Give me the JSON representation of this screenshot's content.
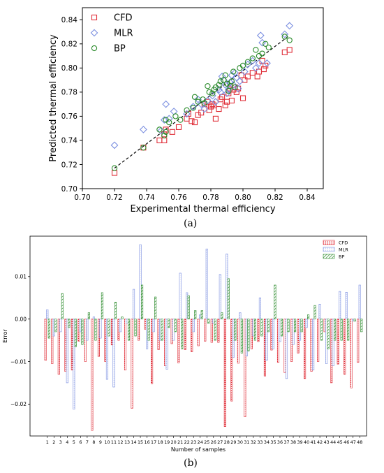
{
  "chart_data": [
    {
      "type": "scatter",
      "subfigure_label": "(a)",
      "xlabel": "Experimental thermal efficiency",
      "ylabel": "Predicted thermal efficiency",
      "xlim": [
        0.7,
        0.85
      ],
      "ylim": [
        0.7,
        0.85
      ],
      "xticks": [
        "0.70",
        "0.72",
        "0.74",
        "0.76",
        "0.78",
        "0.80",
        "0.82",
        "0.84"
      ],
      "yticks": [
        "0.70",
        "0.72",
        "0.74",
        "0.76",
        "0.78",
        "0.80",
        "0.82",
        "0.84"
      ],
      "legend_position": "top-left",
      "grid": false,
      "fit_line": {
        "x": [
          0.72,
          0.828
        ],
        "y": [
          0.717,
          0.826
        ],
        "style": "dashed",
        "color": "#000000"
      },
      "series": [
        {
          "name": "CFD",
          "marker": "square",
          "color": "#e0303a",
          "points": [
            [
              0.72,
              0.713
            ],
            [
              0.738,
              0.734
            ],
            [
              0.748,
              0.74
            ],
            [
              0.751,
              0.74
            ],
            [
              0.751,
              0.745
            ],
            [
              0.752,
              0.749
            ],
            [
              0.756,
              0.747
            ],
            [
              0.76,
              0.751
            ],
            [
              0.765,
              0.758
            ],
            [
              0.766,
              0.762
            ],
            [
              0.768,
              0.756
            ],
            [
              0.77,
              0.755
            ],
            [
              0.772,
              0.761
            ],
            [
              0.774,
              0.763
            ],
            [
              0.776,
              0.77
            ],
            [
              0.778,
              0.772
            ],
            [
              0.779,
              0.765
            ],
            [
              0.78,
              0.768
            ],
            [
              0.781,
              0.77
            ],
            [
              0.782,
              0.769
            ],
            [
              0.783,
              0.758
            ],
            [
              0.785,
              0.766
            ],
            [
              0.786,
              0.774
            ],
            [
              0.787,
              0.776
            ],
            [
              0.789,
              0.769
            ],
            [
              0.79,
              0.772
            ],
            [
              0.791,
              0.779
            ],
            [
              0.792,
              0.783
            ],
            [
              0.793,
              0.773
            ],
            [
              0.794,
              0.782
            ],
            [
              0.795,
              0.784
            ],
            [
              0.796,
              0.78
            ],
            [
              0.797,
              0.783
            ],
            [
              0.799,
              0.794
            ],
            [
              0.8,
              0.775
            ],
            [
              0.801,
              0.79
            ],
            [
              0.803,
              0.793
            ],
            [
              0.806,
              0.796
            ],
            [
              0.809,
              0.793
            ],
            [
              0.81,
              0.797
            ],
            [
              0.812,
              0.806
            ],
            [
              0.813,
              0.799
            ],
            [
              0.814,
              0.802
            ],
            [
              0.826,
              0.813
            ],
            [
              0.829,
              0.815
            ]
          ]
        },
        {
          "name": "MLR",
          "marker": "diamond",
          "color": "#7b8fe0",
          "points": [
            [
              0.72,
              0.736
            ],
            [
              0.738,
              0.749
            ],
            [
              0.749,
              0.748
            ],
            [
              0.751,
              0.757
            ],
            [
              0.752,
              0.77
            ],
            [
              0.754,
              0.758
            ],
            [
              0.757,
              0.764
            ],
            [
              0.765,
              0.762
            ],
            [
              0.769,
              0.768
            ],
            [
              0.772,
              0.774
            ],
            [
              0.774,
              0.77
            ],
            [
              0.776,
              0.766
            ],
            [
              0.778,
              0.773
            ],
            [
              0.781,
              0.777
            ],
            [
              0.783,
              0.772
            ],
            [
              0.785,
              0.782
            ],
            [
              0.786,
              0.78
            ],
            [
              0.787,
              0.793
            ],
            [
              0.788,
              0.79
            ],
            [
              0.789,
              0.786
            ],
            [
              0.79,
              0.779
            ],
            [
              0.791,
              0.782
            ],
            [
              0.792,
              0.788
            ],
            [
              0.793,
              0.794
            ],
            [
              0.794,
              0.786
            ],
            [
              0.795,
              0.796
            ],
            [
              0.796,
              0.792
            ],
            [
              0.797,
              0.783
            ],
            [
              0.798,
              0.789
            ],
            [
              0.801,
              0.797
            ],
            [
              0.803,
              0.803
            ],
            [
              0.806,
              0.806
            ],
            [
              0.808,
              0.8
            ],
            [
              0.81,
              0.804
            ],
            [
              0.811,
              0.827
            ],
            [
              0.812,
              0.821
            ],
            [
              0.815,
              0.804
            ],
            [
              0.826,
              0.828
            ],
            [
              0.829,
              0.835
            ]
          ]
        },
        {
          "name": "BP",
          "marker": "circle",
          "color": "#2a8a2a",
          "points": [
            [
              0.72,
              0.717
            ],
            [
              0.738,
              0.734
            ],
            [
              0.748,
              0.749
            ],
            [
              0.751,
              0.744
            ],
            [
              0.752,
              0.747
            ],
            [
              0.752,
              0.757
            ],
            [
              0.754,
              0.755
            ],
            [
              0.758,
              0.76
            ],
            [
              0.761,
              0.757
            ],
            [
              0.765,
              0.765
            ],
            [
              0.769,
              0.767
            ],
            [
              0.77,
              0.776
            ],
            [
              0.772,
              0.772
            ],
            [
              0.775,
              0.774
            ],
            [
              0.776,
              0.771
            ],
            [
              0.778,
              0.785
            ],
            [
              0.779,
              0.78
            ],
            [
              0.781,
              0.779
            ],
            [
              0.782,
              0.782
            ],
            [
              0.783,
              0.784
            ],
            [
              0.785,
              0.786
            ],
            [
              0.786,
              0.789
            ],
            [
              0.788,
              0.79
            ],
            [
              0.789,
              0.794
            ],
            [
              0.79,
              0.787
            ],
            [
              0.791,
              0.781
            ],
            [
              0.792,
              0.785
            ],
            [
              0.793,
              0.789
            ],
            [
              0.794,
              0.797
            ],
            [
              0.795,
              0.784
            ],
            [
              0.798,
              0.8
            ],
            [
              0.8,
              0.802
            ],
            [
              0.803,
              0.805
            ],
            [
              0.806,
              0.808
            ],
            [
              0.808,
              0.815
            ],
            [
              0.81,
              0.81
            ],
            [
              0.812,
              0.812
            ],
            [
              0.814,
              0.82
            ],
            [
              0.816,
              0.817
            ],
            [
              0.826,
              0.826
            ],
            [
              0.829,
              0.823
            ]
          ]
        }
      ]
    },
    {
      "type": "bar",
      "subfigure_label": "(b)",
      "xlabel": "Number of samples",
      "ylabel": "Error",
      "ylim": [
        -0.0275,
        0.0195
      ],
      "yticks": [
        "0.01",
        "0.00",
        "−0.01",
        "−0.02"
      ],
      "legend_position": "top-right",
      "grid": false,
      "categories": [
        "1",
        "2",
        "3",
        "4",
        "5",
        "6",
        "7",
        "8",
        "9",
        "10",
        "11",
        "12",
        "13",
        "14",
        "15",
        "16",
        "17",
        "18",
        "19",
        "20",
        "21",
        "22",
        "23",
        "24",
        "25",
        "26",
        "27",
        "28",
        "29",
        "30",
        "31",
        "32",
        "33",
        "34",
        "35",
        "36",
        "37",
        "38",
        "39",
        "40",
        "41",
        "42",
        "43",
        "44",
        "45",
        "46",
        "47",
        "48"
      ],
      "series": [
        {
          "name": "CFD",
          "color": "#e0303a",
          "pattern": "dots",
          "values": [
            -0.0097,
            -0.0105,
            -0.013,
            -0.0123,
            -0.012,
            -0.0052,
            -0.01,
            -0.0262,
            -0.0088,
            -0.01,
            -0.0061,
            -0.005,
            -0.012,
            -0.021,
            -0.005,
            -0.0024,
            -0.0152,
            -0.0072,
            -0.011,
            -0.0058,
            -0.0103,
            -0.0072,
            -0.0077,
            -0.0063,
            -0.0052,
            -0.0055,
            -0.0055,
            -0.0253,
            -0.0193,
            -0.0104,
            -0.023,
            -0.007,
            -0.0053,
            -0.0134,
            -0.0073,
            -0.0102,
            -0.0126,
            -0.01,
            -0.008,
            -0.014,
            -0.0123,
            -0.01,
            -0.003,
            -0.015,
            -0.0106,
            -0.013,
            -0.0162,
            -0.0102
          ]
        },
        {
          "name": "MLR",
          "color": "#7b8fe0",
          "pattern": "outline",
          "values": [
            0.0022,
            -0.004,
            -0.003,
            -0.015,
            -0.0212,
            -0.003,
            -0.005,
            0.0005,
            -0.0045,
            -0.0142,
            -0.016,
            -0.003,
            -0.001,
            0.007,
            0.0175,
            -0.007,
            -0.003,
            -0.005,
            -0.0118,
            -0.005,
            0.0108,
            0.0062,
            -0.003,
            0.001,
            0.0165,
            -0.001,
            0.0105,
            0.0153,
            -0.009,
            0.0015,
            -0.0087,
            -0.004,
            0.005,
            -0.0097,
            -0.007,
            -0.0053,
            -0.014,
            -0.006,
            -0.005,
            -0.002,
            -0.012,
            0.0035,
            -0.0105,
            -0.011,
            0.0065,
            0.0063,
            -0.0005,
            0.008
          ]
        },
        {
          "name": "BP",
          "color": "#2a8a2a",
          "pattern": "hatch",
          "values": [
            -0.0045,
            -0.003,
            0.006,
            -0.002,
            -0.0065,
            -0.006,
            0.0015,
            -0.005,
            0.0062,
            -0.004,
            0.004,
            0.0005,
            -0.005,
            -0.004,
            0.008,
            -0.005,
            0.0052,
            -0.005,
            -0.002,
            -0.003,
            -0.007,
            0.0055,
            0.002,
            0.002,
            -0.001,
            -0.005,
            0.0015,
            0.0095,
            -0.005,
            -0.008,
            -0.0075,
            -0.005,
            -0.004,
            -0.003,
            0.008,
            -0.004,
            -0.003,
            -0.003,
            -0.003,
            0.001,
            0.0032,
            -0.005,
            -0.007,
            -0.005,
            -0.005,
            -0.005,
            -0.0005,
            -0.003
          ]
        }
      ]
    }
  ]
}
